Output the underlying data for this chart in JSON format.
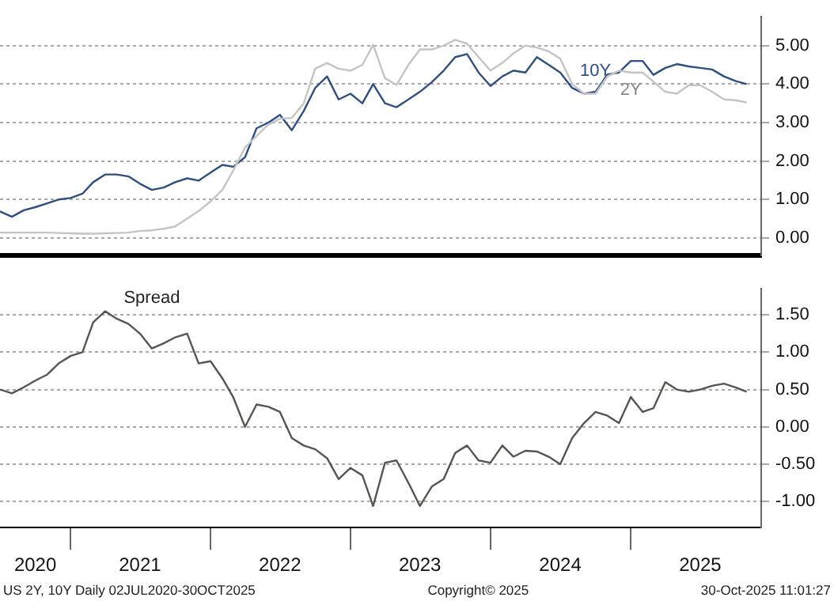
{
  "chart_data": [
    {
      "type": "line",
      "tick_labels": "y",
      "grid": "y",
      "legend": false,
      "marker": "none",
      "line_style": "solid",
      "x": [
        "2020-07",
        "2020-08",
        "2020-09",
        "2020-10",
        "2020-11",
        "2020-12",
        "2021-01",
        "2021-02",
        "2021-03",
        "2021-04",
        "2021-05",
        "2021-06",
        "2021-07",
        "2021-08",
        "2021-09",
        "2021-10",
        "2021-11",
        "2021-12",
        "2022-01",
        "2022-02",
        "2022-03",
        "2022-04",
        "2022-05",
        "2022-06",
        "2022-07",
        "2022-08",
        "2022-09",
        "2022-10",
        "2022-11",
        "2022-12",
        "2023-01",
        "2023-02",
        "2023-03",
        "2023-04",
        "2023-05",
        "2023-06",
        "2023-07",
        "2023-08",
        "2023-09",
        "2023-10",
        "2023-11",
        "2023-12",
        "2024-01",
        "2024-02",
        "2024-03",
        "2024-04",
        "2024-05",
        "2024-06",
        "2024-07",
        "2024-08",
        "2024-09",
        "2024-10",
        "2024-11",
        "2024-12",
        "2025-01",
        "2025-02",
        "2025-03",
        "2025-04",
        "2025-05",
        "2025-06",
        "2025-07",
        "2025-08",
        "2025-09",
        "2025-10",
        "2025-10-30"
      ],
      "xlim": [
        "2020-07-01",
        "2025-12-07"
      ],
      "ylim": [
        -0.45,
        5.75
      ],
      "yticks": [
        {
          "value": 0,
          "label": "0.00"
        },
        {
          "value": 1,
          "label": "1.00"
        },
        {
          "value": 2,
          "label": "2.00"
        },
        {
          "value": 3,
          "label": "3.00"
        },
        {
          "value": 4,
          "label": "4.00"
        },
        {
          "value": 5,
          "label": "5.00"
        }
      ],
      "series": [
        {
          "name": "2Y",
          "color": "#c4c4c4",
          "values": [
            0.14,
            0.14,
            0.14,
            0.14,
            0.14,
            0.13,
            0.12,
            0.11,
            0.11,
            0.12,
            0.13,
            0.14,
            0.18,
            0.2,
            0.24,
            0.3,
            0.5,
            0.7,
            0.95,
            1.25,
            1.75,
            2.35,
            2.65,
            2.95,
            3.1,
            3.12,
            3.5,
            4.4,
            4.55,
            4.4,
            4.35,
            4.5,
            5.02,
            4.15,
            3.98,
            4.5,
            4.9,
            4.9,
            5.0,
            5.15,
            5.05,
            4.7,
            4.35,
            4.55,
            4.8,
            5.0,
            4.95,
            4.85,
            4.66,
            4.0,
            3.75,
            3.75,
            4.2,
            4.35,
            4.3,
            4.3,
            4.06,
            3.8,
            3.75,
            3.97,
            3.97,
            3.8,
            3.6,
            3.58,
            3.52
          ]
        },
        {
          "name": "10Y",
          "color": "#2e4f86",
          "values": [
            0.69,
            0.55,
            0.72,
            0.8,
            0.9,
            1.0,
            1.04,
            1.15,
            1.45,
            1.65,
            1.65,
            1.6,
            1.41,
            1.25,
            1.31,
            1.45,
            1.55,
            1.49,
            1.7,
            1.9,
            1.85,
            2.1,
            2.85,
            3.0,
            3.2,
            2.8,
            3.3,
            3.9,
            4.2,
            3.6,
            3.75,
            3.5,
            4.0,
            3.5,
            3.4,
            3.6,
            3.8,
            4.05,
            4.35,
            4.7,
            4.78,
            4.3,
            3.95,
            4.2,
            4.35,
            4.3,
            4.7,
            4.5,
            4.3,
            3.9,
            3.75,
            3.8,
            4.25,
            4.3,
            4.6,
            4.6,
            4.24,
            4.42,
            4.52,
            4.46,
            4.42,
            4.38,
            4.2,
            4.08,
            4.0
          ]
        }
      ]
    },
    {
      "type": "line",
      "grid": "y",
      "legend": false,
      "marker": "none",
      "line_style": "solid",
      "x": [
        "2020-07",
        "2020-08",
        "2020-09",
        "2020-10",
        "2020-11",
        "2020-12",
        "2021-01",
        "2021-02",
        "2021-03",
        "2021-04",
        "2021-05",
        "2021-06",
        "2021-07",
        "2021-08",
        "2021-09",
        "2021-10",
        "2021-11",
        "2021-12",
        "2022-01",
        "2022-02",
        "2022-03",
        "2022-04",
        "2022-05",
        "2022-06",
        "2022-07",
        "2022-08",
        "2022-09",
        "2022-10",
        "2022-11",
        "2022-12",
        "2023-01",
        "2023-02",
        "2023-03",
        "2023-04",
        "2023-05",
        "2023-06",
        "2023-07",
        "2023-08",
        "2023-09",
        "2023-10",
        "2023-11",
        "2023-12",
        "2024-01",
        "2024-02",
        "2024-03",
        "2024-04",
        "2024-05",
        "2024-06",
        "2024-07",
        "2024-08",
        "2024-09",
        "2024-10",
        "2024-11",
        "2024-12",
        "2025-01",
        "2025-02",
        "2025-03",
        "2025-04",
        "2025-05",
        "2025-06",
        "2025-07",
        "2025-08",
        "2025-09",
        "2025-10",
        "2025-10-30"
      ],
      "xlim": [
        "2020-07-01",
        "2025-12-07"
      ],
      "xticks": [
        {
          "value": "2020-10-01",
          "label": "2020"
        },
        {
          "value": "2021-01-01",
          "label": null
        },
        {
          "value": "2021-07-01",
          "label": "2021"
        },
        {
          "value": "2022-01-01",
          "label": null
        },
        {
          "value": "2022-07-01",
          "label": "2022"
        },
        {
          "value": "2023-01-01",
          "label": null
        },
        {
          "value": "2023-07-01",
          "label": "2023"
        },
        {
          "value": "2024-01-01",
          "label": null
        },
        {
          "value": "2024-07-01",
          "label": "2024"
        },
        {
          "value": "2025-01-01",
          "label": null
        },
        {
          "value": "2025-07-01",
          "label": "2025"
        }
      ],
      "ylim": [
        -1.35,
        1.85
      ],
      "yticks": [
        {
          "value": -1,
          "label": "-1.00"
        },
        {
          "value": -0.5,
          "label": "-0.50"
        },
        {
          "value": 0,
          "label": "0.00"
        },
        {
          "value": 0.5,
          "label": "0.50"
        },
        {
          "value": 1,
          "label": "1.00"
        },
        {
          "value": 1.5,
          "label": "1.50"
        }
      ],
      "series": [
        {
          "name": "Spread",
          "color": "#5a5450",
          "values": [
            0.5,
            0.45,
            0.53,
            0.62,
            0.7,
            0.85,
            0.95,
            1.0,
            1.4,
            1.55,
            1.45,
            1.38,
            1.25,
            1.05,
            1.12,
            1.2,
            1.25,
            0.85,
            0.88,
            0.65,
            0.4,
            0.0,
            0.3,
            0.27,
            0.2,
            -0.15,
            -0.25,
            -0.3,
            -0.42,
            -0.7,
            -0.55,
            -0.65,
            -1.06,
            -0.48,
            -0.45,
            -0.75,
            -1.06,
            -0.8,
            -0.7,
            -0.35,
            -0.25,
            -0.45,
            -0.48,
            -0.25,
            -0.4,
            -0.32,
            -0.33,
            -0.4,
            -0.5,
            -0.15,
            0.05,
            0.2,
            0.15,
            0.05,
            0.4,
            0.2,
            0.25,
            0.6,
            0.5,
            0.47,
            0.5,
            0.55,
            0.58,
            0.53,
            0.47
          ]
        }
      ],
      "annotations": [
        "US 2Y, 10Y Daily 02JUL2020-30OCT2025",
        "Copyright© 2025",
        "30-Oct-2025 11:01:27"
      ]
    }
  ]
}
